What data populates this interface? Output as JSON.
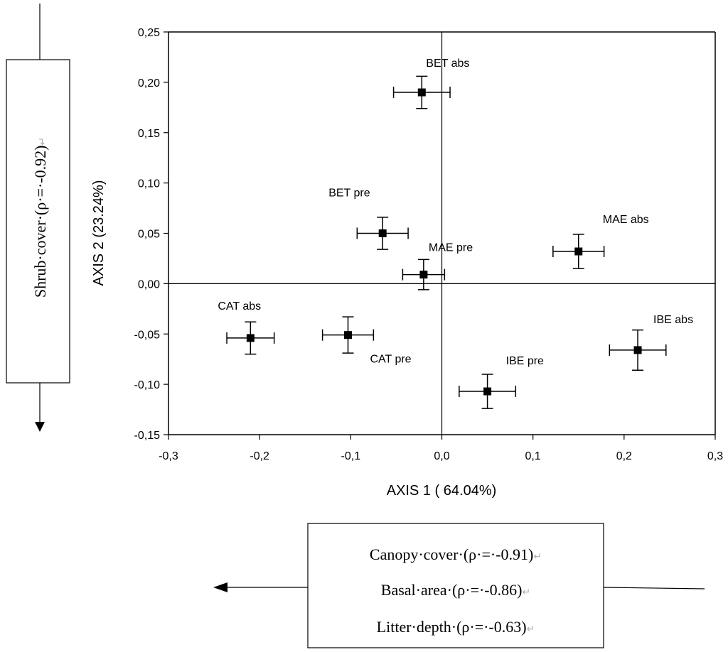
{
  "chart_data": {
    "type": "scatter",
    "xlabel": "AXIS 1 ( 64.04%)",
    "ylabel": "AXIS 2 (23.24%)",
    "xlim": [
      -0.3,
      0.3
    ],
    "ylim": [
      -0.15,
      0.25
    ],
    "xticks": [
      -0.3,
      -0.2,
      -0.1,
      0.0,
      0.1,
      0.2,
      0.3
    ],
    "xtick_labels": [
      "-0,3",
      "-0,2",
      "-0,1",
      "0,0",
      "0,1",
      "0,2",
      "0,3"
    ],
    "yticks": [
      0.25,
      0.2,
      0.15,
      0.1,
      0.05,
      0.0,
      -0.05,
      -0.1,
      -0.15
    ],
    "ytick_labels": [
      "0,25",
      "0,20",
      "0,15",
      "0,10",
      "0,05",
      "0,00",
      "-0,05",
      "-0,10",
      "-0,15"
    ],
    "grid": false,
    "points": [
      {
        "label": "BET abs",
        "x": -0.022,
        "y": 0.19,
        "xerr": 0.031,
        "yerr": 0.016
      },
      {
        "label": "BET pre",
        "x": -0.065,
        "y": 0.05,
        "xerr": 0.028,
        "yerr": 0.016
      },
      {
        "label": "MAE pre",
        "x": -0.02,
        "y": 0.009,
        "xerr": 0.023,
        "yerr": 0.015
      },
      {
        "label": "MAE abs",
        "x": 0.15,
        "y": 0.032,
        "xerr": 0.028,
        "yerr": 0.017
      },
      {
        "label": "CAT abs",
        "x": -0.21,
        "y": -0.054,
        "xerr": 0.026,
        "yerr": 0.016
      },
      {
        "label": "CAT pre",
        "x": -0.103,
        "y": -0.051,
        "xerr": 0.028,
        "yerr": 0.018
      },
      {
        "label": "IBE pre",
        "x": 0.05,
        "y": -0.107,
        "xerr": 0.031,
        "yerr": 0.017
      },
      {
        "label": "IBE abs",
        "x": 0.215,
        "y": -0.066,
        "xerr": 0.031,
        "yerr": 0.02
      }
    ]
  },
  "vertical_gradient": {
    "label": "Shrub·cover·(ρ·=·-0.92)",
    "return_mark": "↵"
  },
  "horizontal_gradient": {
    "lines": [
      {
        "text": "Canopy·cover·(ρ·=·-0.91)",
        "mark": "↵"
      },
      {
        "text": "Basal·area·(ρ·=·-0.86)",
        "mark": "↵"
      },
      {
        "text": "Litter·depth·(ρ·=·-0.63)",
        "mark": "↵"
      }
    ]
  }
}
